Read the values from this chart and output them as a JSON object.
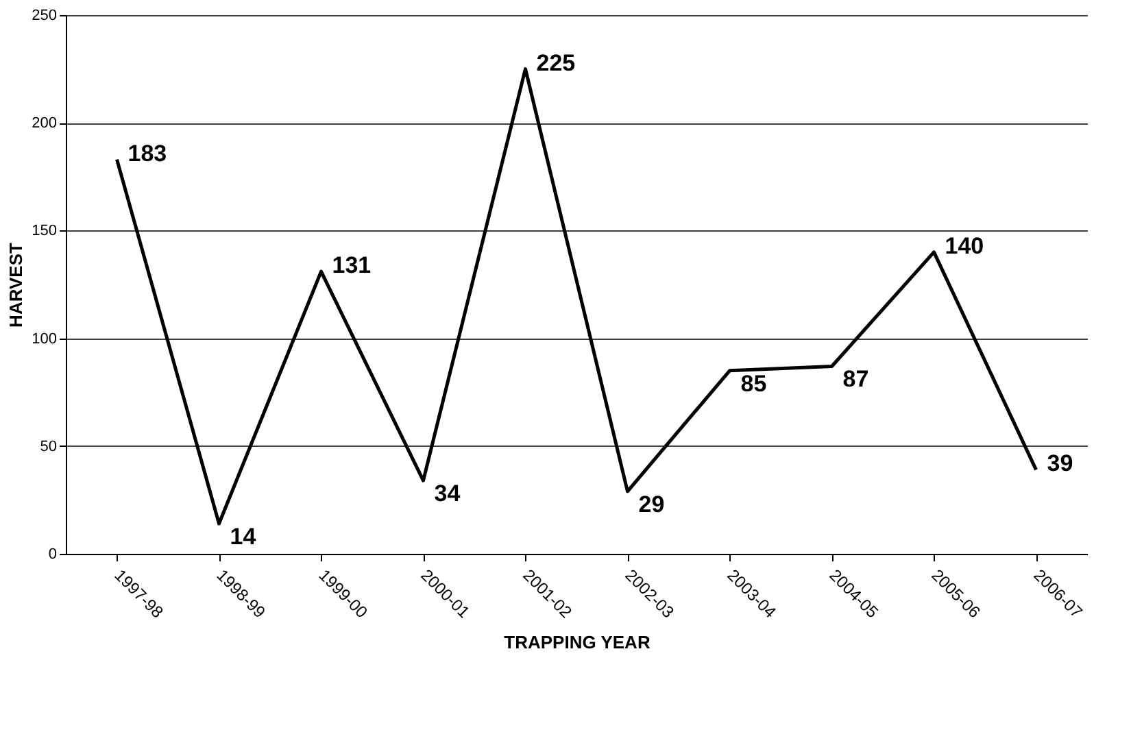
{
  "chart_data": {
    "type": "line",
    "xlabel": "TRAPPING YEAR",
    "ylabel": "HARVEST",
    "categories": [
      "1997-98",
      "1998-99",
      "1999-00",
      "2000-01",
      "2001-02",
      "2002-03",
      "2003-04",
      "2004-05",
      "2005-06",
      "2006-07"
    ],
    "series": [
      {
        "color": "#000000",
        "values": [
          183,
          14,
          131,
          34,
          225,
          29,
          85,
          87,
          140,
          39
        ]
      }
    ],
    "ylim": [
      0,
      250
    ],
    "yticks": [
      0,
      50,
      100,
      150,
      200,
      250
    ],
    "grid": "y",
    "data_labels": true,
    "marker": "none",
    "line_style": "solid",
    "legend": false
  }
}
